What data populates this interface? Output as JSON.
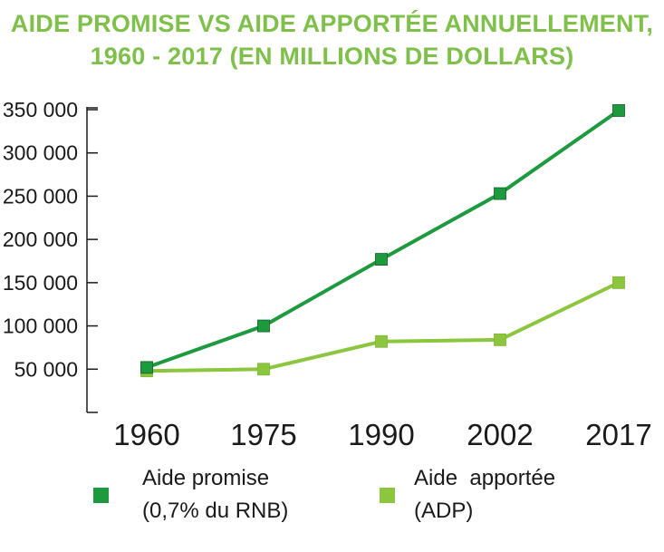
{
  "title_line1": "AIDE PROMISE VS AIDE APPORTÉE ANNUELLEMENT,",
  "title_line2": "1960 - 2017 (EN MILLIONS DE DOLLARS)",
  "colors": {
    "title": "#7ec04a",
    "promise": "#1e9a3e",
    "delivered": "#8cc63f",
    "axis": "#1a1a1a"
  },
  "legend": {
    "promise_line1": "Aide promise",
    "promise_line2": "(0,7% du RNB)",
    "delivered_line1": "Aide  apportée",
    "delivered_line2": "(ADP)"
  },
  "chart_data": {
    "type": "line",
    "title": "AIDE PROMISE VS AIDE APPORTÉE ANNUELLEMENT, 1960 - 2017 (EN MILLIONS DE DOLLARS)",
    "xlabel": "",
    "ylabel": "",
    "categories": [
      "1960",
      "1975",
      "1990",
      "2002",
      "2017"
    ],
    "y_ticks": [
      50000,
      100000,
      150000,
      200000,
      250000,
      300000,
      350000
    ],
    "y_tick_labels": [
      "50 000",
      "100 000",
      "150 000",
      "200 000",
      "250 000",
      "300 000",
      "350 000"
    ],
    "ylim": [
      0,
      350000
    ],
    "grid": false,
    "legend_position": "bottom",
    "series": [
      {
        "name": "Aide promise (0,7% du RNB)",
        "values": [
          52000,
          100000,
          177000,
          253000,
          349000
        ]
      },
      {
        "name": "Aide apportée (ADP)",
        "values": [
          48000,
          50000,
          82000,
          84000,
          150000
        ]
      }
    ]
  }
}
